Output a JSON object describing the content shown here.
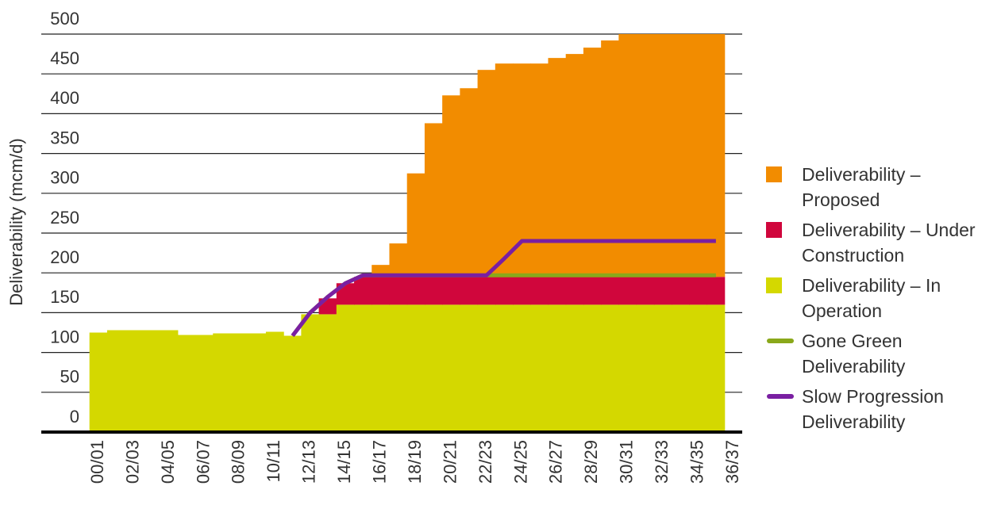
{
  "chart_data": {
    "type": "area",
    "y_label": "Deliverability (mcm/d)",
    "categories": [
      "00/01",
      null,
      "02/03",
      null,
      "04/05",
      null,
      "06/07",
      null,
      "08/09",
      null,
      "10/11",
      null,
      "12/13",
      null,
      "14/15",
      null,
      "16/17",
      null,
      "18/19",
      null,
      "20/21",
      null,
      "22/23",
      null,
      "24/25",
      null,
      "26/27",
      null,
      "28/29",
      null,
      "30/31",
      null,
      "32/33",
      null,
      "34/35",
      null,
      "36/37"
    ],
    "ylim": [
      0,
      500
    ],
    "yticks": [
      0,
      50,
      100,
      150,
      200,
      250,
      300,
      350,
      400,
      450,
      500
    ],
    "grid": true,
    "series": [
      {
        "name": "Deliverability – In Operation",
        "type": "area",
        "color": "#d4d800",
        "values": [
          125,
          128,
          128,
          128,
          128,
          122,
          122,
          124,
          124,
          124,
          126,
          121,
          148,
          148,
          160,
          160,
          160,
          160,
          160,
          160,
          160,
          160,
          160,
          160,
          160,
          160,
          160,
          160,
          160,
          160,
          160,
          160,
          160,
          160,
          160,
          160,
          null
        ]
      },
      {
        "name": "Deliverability – Under Construction",
        "type": "area",
        "color": "#d0063c",
        "values": [
          0,
          0,
          0,
          0,
          0,
          0,
          0,
          0,
          0,
          0,
          0,
          0,
          0,
          20,
          27,
          35,
          35,
          35,
          35,
          35,
          35,
          35,
          35,
          35,
          35,
          35,
          35,
          35,
          35,
          35,
          35,
          35,
          35,
          35,
          35,
          35,
          null
        ]
      },
      {
        "name": "Deliverability – Proposed",
        "type": "area",
        "color": "#f28c00",
        "values": [
          0,
          0,
          0,
          0,
          0,
          0,
          0,
          0,
          0,
          0,
          0,
          0,
          0,
          0,
          0,
          0,
          15,
          42,
          130,
          193,
          228,
          237,
          260,
          268,
          268,
          268,
          275,
          280,
          288,
          297,
          305,
          305,
          305,
          305,
          305,
          305,
          null
        ]
      },
      {
        "name": "Gone Green Deliverability",
        "type": "line",
        "color": "#8aa81a",
        "values": [
          null,
          null,
          null,
          null,
          null,
          null,
          null,
          null,
          null,
          null,
          null,
          121,
          150,
          170,
          187,
          197,
          197,
          197,
          197,
          197,
          197,
          197,
          197,
          197,
          197,
          197,
          197,
          197,
          197,
          197,
          197,
          197,
          197,
          197,
          197,
          197,
          null
        ]
      },
      {
        "name": "Slow Progression Deliverability",
        "type": "line",
        "color": "#7a1fa2",
        "values": [
          null,
          null,
          null,
          null,
          null,
          null,
          null,
          null,
          null,
          null,
          null,
          121,
          150,
          170,
          187,
          197,
          197,
          197,
          197,
          197,
          197,
          197,
          197,
          218,
          240,
          240,
          240,
          240,
          240,
          240,
          240,
          240,
          240,
          240,
          240,
          240,
          null
        ]
      }
    ],
    "legend_order": [
      2,
      1,
      0,
      3,
      4
    ]
  }
}
